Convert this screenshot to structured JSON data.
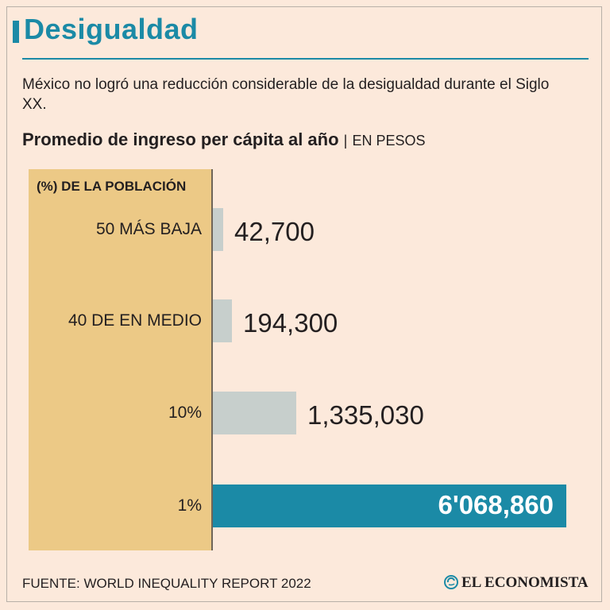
{
  "header": {
    "title": "Desigualdad",
    "subtitle": "México no logró una reducción considerable de la desigualdad durante el Siglo XX."
  },
  "colors": {
    "accent": "#1b8aa6",
    "panel": "#ecc986",
    "bar_gray": "#c7cfcc",
    "background": "#fce9db"
  },
  "chart_data": {
    "type": "bar",
    "orientation": "horizontal",
    "title": "Promedio de ingreso per cápita al año",
    "separator": "|",
    "unit": "EN PESOS",
    "category_header": "(%) DE LA POBLACIÓN",
    "categories": [
      "50 MÁS BAJA",
      "40 DE EN MEDIO",
      "10%",
      "1%"
    ],
    "values": [
      42700,
      194300,
      1335030,
      6068860
    ],
    "value_labels": [
      "42,700",
      "194,300",
      "1,335,030",
      "6'068,860"
    ],
    "highlight_index": 3
  },
  "footer": {
    "source": "FUENTE: WORLD INEQUALITY REPORT 2022",
    "brand": "EL ECONOMISTA"
  }
}
